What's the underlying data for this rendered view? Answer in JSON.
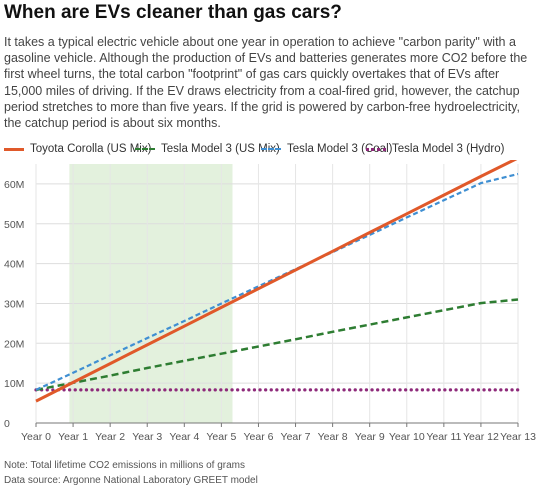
{
  "title": "When are EVs cleaner than gas cars?",
  "subtitle": "It takes a typical electric vehicle about one year in operation to achieve \"carbon parity\" with a gasoline vehicle. Although the production of EVs and batteries generates more CO2 before the first wheel turns, the total carbon \"footprint\" of gas cars quickly overtakes that of EVs after 15,000 miles of driving. If the EV draws electricity from a coal-fired grid, however, the catchup period stretches to more than five years. If the grid is powered by carbon-free hydroelectricity, the catchup period is about six months.",
  "footer": {
    "note": "Note: Total lifetime CO2 emissions in millions of grams",
    "source": "Data source: Argonne National Laboratory GREET model"
  },
  "chart_data": {
    "type": "line",
    "x": [
      0,
      1,
      2,
      3,
      4,
      5,
      6,
      7,
      8,
      9,
      10,
      11,
      12,
      13
    ],
    "categories": [
      "Year 0",
      "Year 1",
      "Year 2",
      "Year 3",
      "Year 4",
      "Year 5",
      "Year 6",
      "Year 7",
      "Year 8",
      "Year 9",
      "Year 10",
      "Year 11",
      "Year 12",
      "Year 13"
    ],
    "ylim": [
      0,
      65
    ],
    "yticks": [
      0,
      10,
      20,
      30,
      40,
      50,
      60
    ],
    "ytick_labels": [
      "0",
      "10M",
      "20M",
      "30M",
      "40M",
      "50M",
      "60M"
    ],
    "grid": "horizontal",
    "highlight_band": {
      "x_start": 0.9,
      "x_end": 5.3,
      "color": "#e3f1dd"
    },
    "series": [
      {
        "name": "Toyota Corolla (US Mix)",
        "color": "#e0592a",
        "style": "solid",
        "values": [
          5.5,
          10.2,
          14.9,
          19.6,
          24.3,
          29.0,
          33.7,
          38.4,
          43.1,
          47.8,
          52.5,
          57.2,
          61.9,
          66.5
        ]
      },
      {
        "name": "Tesla Model 3 (US Mix)",
        "color": "#2e7d32",
        "style": "dashed",
        "values": [
          8.3,
          10.1,
          11.9,
          13.8,
          15.6,
          17.4,
          19.2,
          21.0,
          22.9,
          24.7,
          26.5,
          28.3,
          30.1,
          31.0
        ]
      },
      {
        "name": "Tesla Model 3 (Coal)",
        "color": "#3f8fd2",
        "style": "dashed-short",
        "values": [
          8.3,
          12.6,
          17.0,
          21.3,
          25.6,
          30.0,
          34.3,
          38.6,
          42.9,
          47.2,
          51.6,
          55.9,
          60.2,
          62.5
        ]
      },
      {
        "name": "Tesla Model 3 (Hydro)",
        "color": "#8e2a7a",
        "style": "dotted",
        "values": [
          8.3,
          8.3,
          8.3,
          8.3,
          8.3,
          8.3,
          8.3,
          8.3,
          8.3,
          8.3,
          8.3,
          8.3,
          8.3,
          8.3
        ]
      }
    ]
  }
}
